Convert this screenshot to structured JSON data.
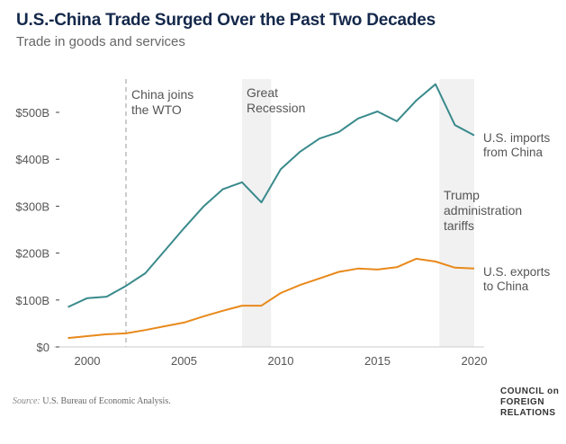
{
  "header": {
    "title": "U.S.-China Trade Surged Over the Past Two Decades",
    "subtitle": "Trade in goods and services"
  },
  "footer": {
    "source_label": "Source:",
    "source_text": " U.S. Bureau of Economic Analysis.",
    "logo_lines": [
      "COUNCIL on",
      "FOREIGN",
      "RELATIONS"
    ]
  },
  "colors": {
    "imports": "#3a8a8c",
    "exports": "#e8891b",
    "shade": "#f1f1f1",
    "axis": "#cccccc",
    "text": "#555555"
  },
  "chart_data": {
    "type": "line",
    "title": "U.S.-China Trade Surged Over the Past Two Decades",
    "subtitle": "Trade in goods and services",
    "xlabel": "",
    "ylabel": "",
    "xlim": [
      1999,
      2020
    ],
    "ylim": [
      0,
      560
    ],
    "x": [
      1999,
      2000,
      2001,
      2002,
      2003,
      2004,
      2005,
      2006,
      2007,
      2008,
      2009,
      2010,
      2011,
      2012,
      2013,
      2014,
      2015,
      2016,
      2017,
      2018,
      2019,
      2020
    ],
    "xticks": [
      2000,
      2005,
      2010,
      2015,
      2020
    ],
    "xtick_labels": [
      "2000",
      "2005",
      "2010",
      "2015",
      "2020"
    ],
    "yticks": [
      0,
      100,
      200,
      300,
      400,
      500
    ],
    "ytick_labels": [
      "$0",
      "$100B",
      "$200B",
      "$300B",
      "$400B",
      "$500B"
    ],
    "grid": false,
    "series": [
      {
        "name": "U.S. imports from China",
        "label_lines": [
          "U.S. imports",
          "from China"
        ],
        "color": "#3a8a8c",
        "values": [
          85,
          104,
          107,
          130,
          157,
          205,
          253,
          299,
          336,
          351,
          308,
          379,
          416,
          444,
          458,
          487,
          502,
          481,
          525,
          560,
          473,
          451
        ]
      },
      {
        "name": "U.S. exports to China",
        "label_lines": [
          "U.S. exports",
          "to China"
        ],
        "color": "#e8891b",
        "values": [
          19,
          23,
          27,
          29,
          36,
          44,
          52,
          65,
          77,
          88,
          88,
          115,
          132,
          146,
          160,
          167,
          165,
          170,
          188,
          182,
          169,
          167
        ]
      }
    ],
    "annotations": [
      {
        "type": "vline",
        "x": 2002,
        "label_lines": [
          "China joins",
          "the WTO"
        ]
      },
      {
        "type": "band",
        "x": [
          2008,
          2009.5
        ],
        "label_lines": [
          "Great",
          "Recession"
        ]
      },
      {
        "type": "band",
        "x": [
          2018.2,
          2020
        ],
        "label_lines": [
          "Trump",
          "administration",
          "tariffs"
        ]
      }
    ]
  }
}
